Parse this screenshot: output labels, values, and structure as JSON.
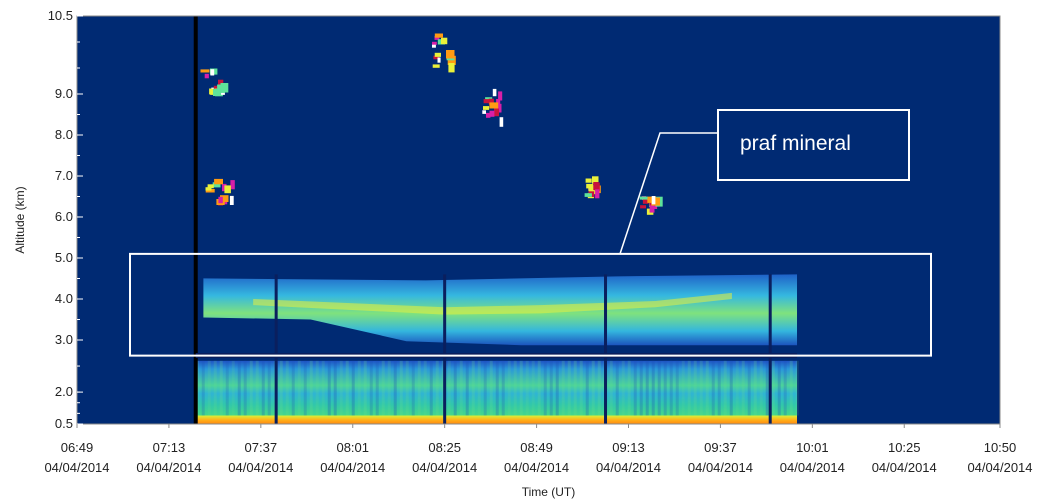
{
  "colors": {
    "background": "#002a73",
    "annotation": "#ffffff",
    "layer_cyan": "#33b2ea",
    "layer_green": "#5ee39a",
    "layer_yellow": "#eaf13a",
    "surface_orange": "#ff9b12",
    "cloud_magenta": "#d81fa8",
    "cloud_red": "#c8143c"
  },
  "chart_data": {
    "type": "heatmap",
    "xlabel": "Time (UT)",
    "ylabel": "Altitude (km)",
    "ylim": [
      0.5,
      10.5
    ],
    "y_ticks": [
      "10.5",
      "9.0",
      "8.0",
      "7.0",
      "6.0",
      "5.0",
      "4.0",
      "3.0",
      "2.0",
      "0.5"
    ],
    "x_ticks": [
      {
        "time": "06:49",
        "date": "04/04/2014"
      },
      {
        "time": "07:13",
        "date": "04/04/2014"
      },
      {
        "time": "07:37",
        "date": "04/04/2014"
      },
      {
        "time": "08:01",
        "date": "04/04/2014"
      },
      {
        "time": "08:25",
        "date": "04/04/2014"
      },
      {
        "time": "08:49",
        "date": "04/04/2014"
      },
      {
        "time": "09:13",
        "date": "04/04/2014"
      },
      {
        "time": "09:37",
        "date": "04/04/2014"
      },
      {
        "time": "10:01",
        "date": "04/04/2014"
      },
      {
        "time": "10:25",
        "date": "04/04/2014"
      },
      {
        "time": "10:50",
        "date": "04/04/2014"
      }
    ],
    "annotation": {
      "label": "praf mineral",
      "time_range": [
        "06:50",
        "10:35"
      ],
      "altitude_range_km": [
        2.7,
        5.1
      ]
    },
    "measurement_period": [
      "07:20",
      "09:57"
    ],
    "layers": [
      {
        "kind": "surface",
        "time_range": [
          "07:20",
          "09:57"
        ],
        "altitude_km": [
          0.5,
          0.9
        ]
      },
      {
        "kind": "boundary layer",
        "time_range": [
          "07:20",
          "09:57"
        ],
        "altitude_km": [
          0.9,
          2.6
        ]
      },
      {
        "kind": "aerosol",
        "time_range": [
          "07:22",
          "09:57"
        ],
        "altitude_km": [
          2.9,
          4.6
        ]
      }
    ],
    "clouds": [
      {
        "time": "07:24",
        "altitude_km": 9.3
      },
      {
        "time": "07:26",
        "altitude_km": 6.7
      },
      {
        "time": "08:24",
        "altitude_km": 9.9
      },
      {
        "time": "08:37",
        "altitude_km": 8.8
      },
      {
        "time": "09:03",
        "altitude_km": 6.8
      },
      {
        "time": "09:18",
        "altitude_km": 6.4
      }
    ]
  }
}
